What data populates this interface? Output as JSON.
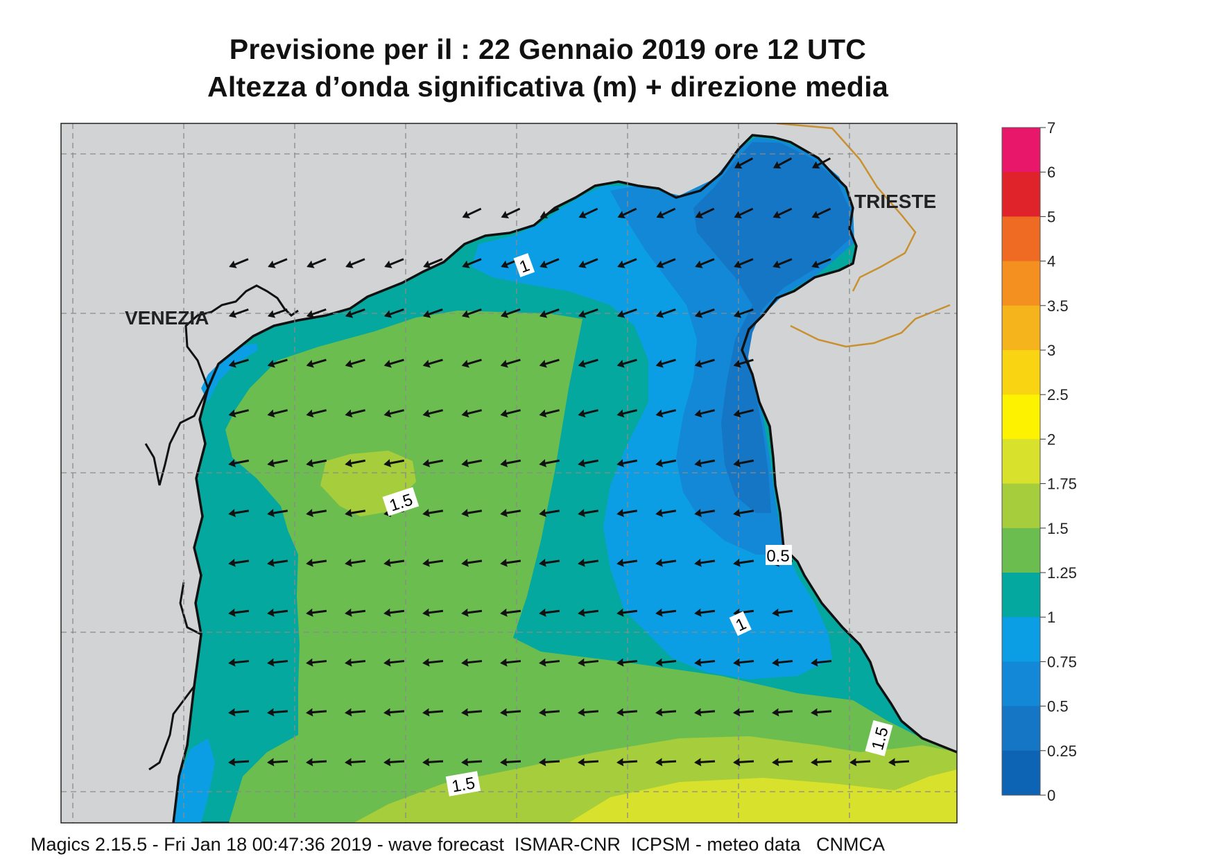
{
  "title": {
    "line1": "Previsione per il  :  22  Gennaio  2019   ore 12 UTC",
    "line2": "Altezza d’onda significativa (m) + direzione media"
  },
  "places": {
    "venezia": "VENEZIA",
    "trieste": "TRIESTE"
  },
  "contour_labels": [
    "1",
    "1.5",
    "0.5",
    "1",
    "1.5",
    "1.5"
  ],
  "legend": {
    "ticks": [
      "7",
      "6",
      "5",
      "4",
      "3.5",
      "3",
      "2.5",
      "2",
      "1.75",
      "1.5",
      "1.25",
      "1",
      "0.75",
      "0.5",
      "0.25",
      "0"
    ],
    "colors": [
      "#e8176a",
      "#e0222a",
      "#ef6a23",
      "#f4901f",
      "#f5b41c",
      "#f9d413",
      "#fdf200",
      "#d8e12b",
      "#a6cd3c",
      "#6cbd4f",
      "#04a89f",
      "#0c9ee4",
      "#1288d7",
      "#1576c5",
      "#0d64b5"
    ]
  },
  "footer": "Magics 2.15.5 - Fri Jan 18 00:47:36 2019 - wave forecast  ISMAR-CNR  ICPSM - meteo data   CNMCA",
  "colors": {
    "land": "#d2d3d5",
    "coast": "#111111",
    "border": "#c8902e",
    "grid": "#8a8a8a",
    "arrow": "#111111"
  }
}
